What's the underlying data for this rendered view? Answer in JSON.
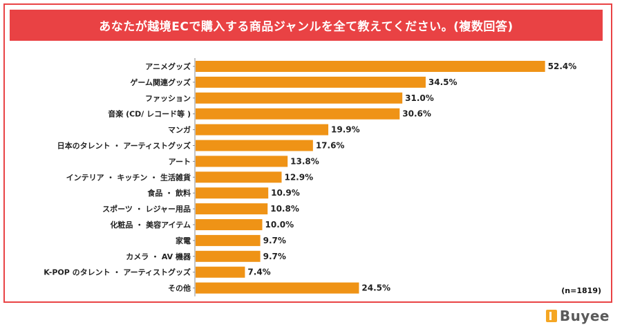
{
  "title": "あなたが越境ECで購入する商品ジャンルを全て教えてください。(複数回答)",
  "note": "(n=1819)",
  "brand": "Buyee",
  "colors": {
    "bar": "#ef9316",
    "title_bg": "#e94244",
    "border": "#e94244"
  },
  "chart_data": {
    "type": "bar",
    "orientation": "horizontal",
    "categories": [
      "アニメグッズ",
      "ゲーム関連グッズ",
      "ファッション",
      "音楽 (CD/ レコード等 )",
      "マンガ",
      "日本のタレント ・ アーティストグッズ",
      "アート",
      "インテリア ・ キッチン ・ 生活雑貨",
      "食品 ・ 飲料",
      "スポーツ ・ レジャー用品",
      "化粧品 ・ 美容アイテム",
      "家電",
      "カメラ ・ AV 機器",
      "K-POP のタレント ・ アーティストグッズ",
      "その他"
    ],
    "values": [
      52.4,
      34.5,
      31.0,
      30.6,
      19.9,
      17.6,
      13.8,
      12.9,
      10.9,
      10.8,
      10.0,
      9.7,
      9.7,
      7.4,
      24.5
    ],
    "value_labels": [
      "52.4%",
      "34.5%",
      "31.0%",
      "30.6%",
      "19.9%",
      "17.6%",
      "13.8%",
      "12.9%",
      "10.9%",
      "10.8%",
      "10.0%",
      "9.7%",
      "9.7%",
      "7.4%",
      "24.5%"
    ],
    "xlim": [
      0,
      60
    ],
    "grid": false,
    "legend": "none"
  }
}
